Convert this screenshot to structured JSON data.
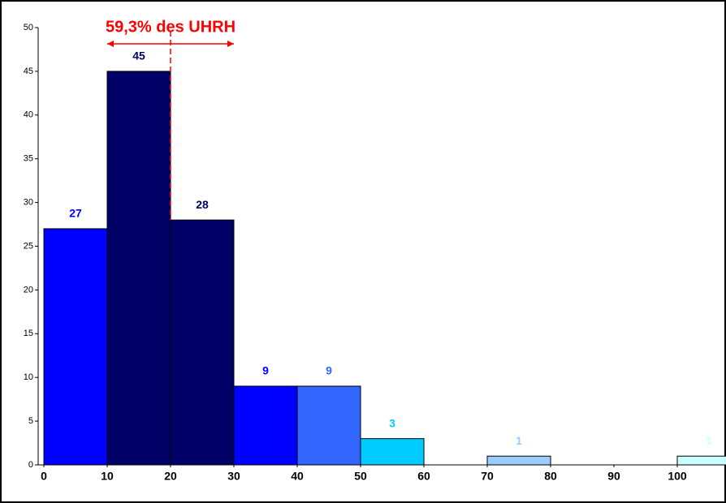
{
  "chart_data": {
    "type": "histogram",
    "bins": [
      0,
      10,
      20,
      30,
      40,
      50,
      60,
      70,
      80,
      90,
      100,
      110
    ],
    "values": [
      27,
      45,
      28,
      9,
      9,
      3,
      0,
      1,
      0,
      0,
      1
    ],
    "colors": [
      "#0000ff",
      "#000066",
      "#000066",
      "#0000ff",
      "#3366ff",
      "#00ccff",
      "#00ccff",
      "#99ccff",
      "#99ccff",
      "#99ccff",
      "#ccffff"
    ],
    "xlim": [
      0,
      110
    ],
    "ylim": [
      0,
      50
    ],
    "xticks": [
      0,
      10,
      20,
      30,
      40,
      50,
      60,
      70,
      80,
      90,
      100
    ],
    "yticks": [
      0,
      5,
      10,
      15,
      20,
      25,
      30,
      35,
      40,
      45,
      50
    ],
    "annotation": {
      "text": "59,3% des UHRH",
      "x": 20,
      "arrow": [
        10,
        30
      ],
      "color": "#ff0000"
    }
  }
}
